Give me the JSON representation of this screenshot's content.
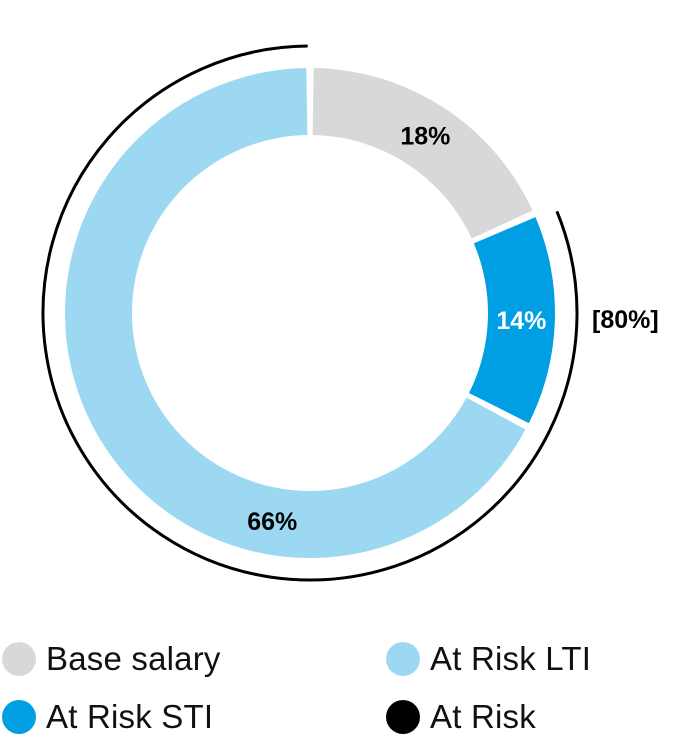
{
  "chart_data": {
    "type": "donut",
    "title": "",
    "slices": [
      {
        "name": "Base salary",
        "value": 18,
        "label": "18%",
        "color": "#d8d8d8",
        "label_color": "#000000"
      },
      {
        "name": "At Risk STI",
        "value": 14,
        "label": "14%",
        "color": "#009fe3",
        "label_color": "#ffffff"
      },
      {
        "name": "At Risk LTI",
        "value": 66,
        "label": "66%",
        "color": "#9dd8f2",
        "label_color": "#000000"
      }
    ],
    "bracket": {
      "name": "At Risk",
      "label": "[80%]",
      "color": "#000000",
      "covers": [
        "At Risk STI",
        "At Risk LTI"
      ]
    },
    "legend": [
      {
        "name": "Base salary",
        "color": "#d8d8d8"
      },
      {
        "name": "At Risk STI",
        "color": "#009fe3"
      },
      {
        "name": "At Risk LTI",
        "color": "#9dd8f2"
      },
      {
        "name": "At Risk",
        "color": "#000000"
      }
    ]
  }
}
